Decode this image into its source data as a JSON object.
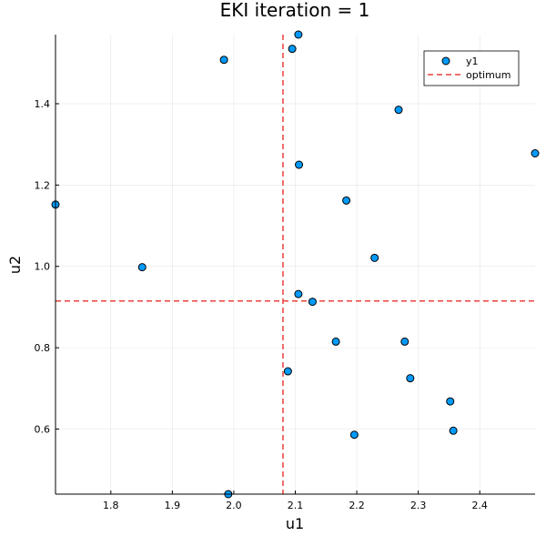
{
  "chart_data": {
    "type": "scatter",
    "title": "EKI iteration = 1",
    "xlabel": "u1",
    "ylabel": "u2",
    "xlim": [
      1.71,
      2.49
    ],
    "ylim": [
      0.44,
      1.57
    ],
    "xticks": [
      1.8,
      1.9,
      2.0,
      2.1,
      2.2,
      2.3,
      2.4
    ],
    "xtick_labels": [
      "1.8",
      "1.9",
      "2.0",
      "2.1",
      "2.2",
      "2.3",
      "2.4"
    ],
    "yticks": [
      0.6,
      0.8,
      1.0,
      1.2,
      1.4
    ],
    "ytick_labels": [
      "0.6",
      "0.8",
      "1.0",
      "1.2",
      "1.4"
    ],
    "grid": true,
    "legend_position": "top-right",
    "series": [
      {
        "name": "y1",
        "color": "#009AFA",
        "points": [
          [
            2.105,
            1.57
          ],
          [
            2.095,
            1.535
          ],
          [
            1.984,
            1.508
          ],
          [
            2.268,
            1.385
          ],
          [
            2.49,
            1.278
          ],
          [
            2.106,
            1.25
          ],
          [
            2.183,
            1.162
          ],
          [
            1.71,
            1.152
          ],
          [
            2.229,
            1.021
          ],
          [
            1.851,
            0.998
          ],
          [
            2.105,
            0.932
          ],
          [
            2.128,
            0.913
          ],
          [
            2.166,
            0.815
          ],
          [
            2.278,
            0.815
          ],
          [
            2.088,
            0.742
          ],
          [
            2.287,
            0.725
          ],
          [
            2.352,
            0.668
          ],
          [
            2.357,
            0.596
          ],
          [
            2.196,
            0.586
          ],
          [
            1.991,
            0.44
          ]
        ]
      }
    ],
    "reference_lines": {
      "name": "optimum",
      "color": "#E8413B",
      "x": 2.08,
      "y": 0.915
    }
  }
}
